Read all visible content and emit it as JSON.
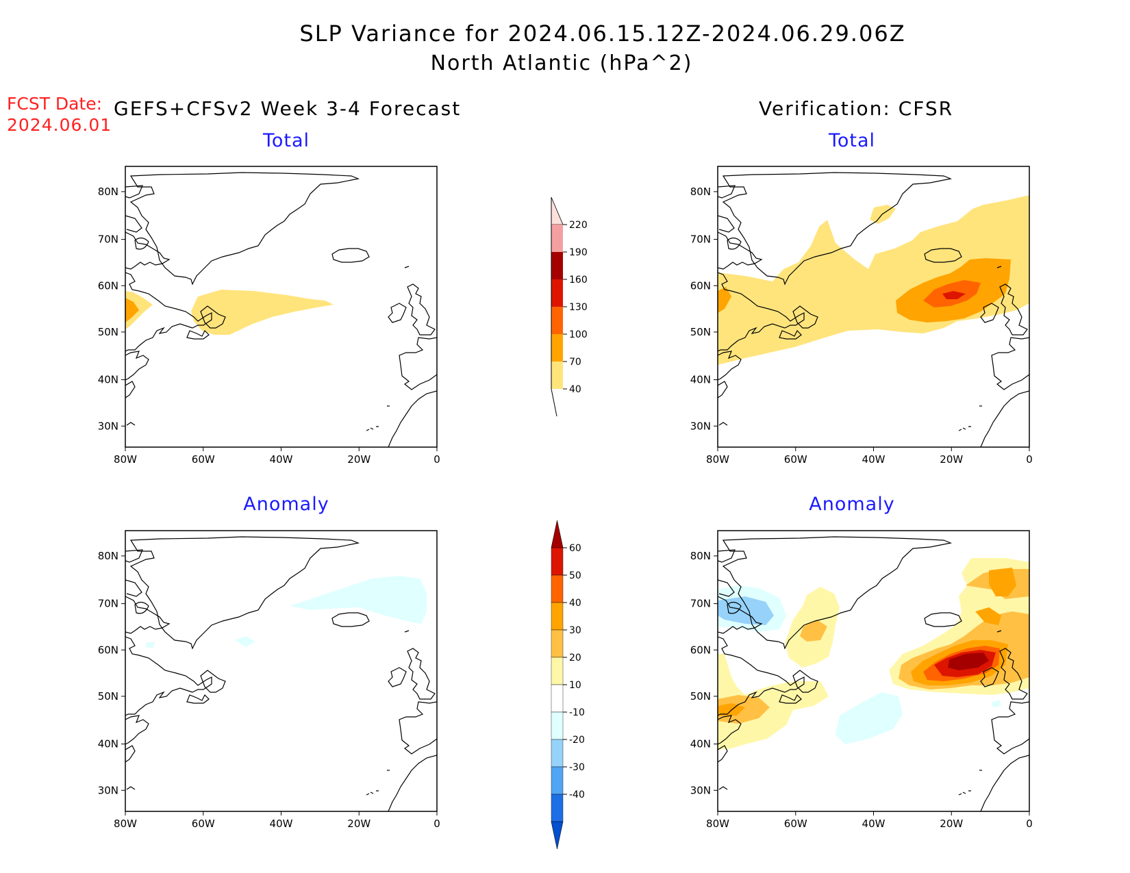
{
  "title": {
    "line1": "SLP Variance for 2024.06.15.12Z-2024.06.29.06Z",
    "line2": "North Atlantic (hPa^2)"
  },
  "forecast": {
    "date_label": "FCST Date:",
    "date_value": "2024.06.01",
    "title": "GEFS+CFSv2 Week 3-4 Forecast"
  },
  "verification": {
    "title": "Verification: CFSR"
  },
  "subtitles": {
    "total": "Total",
    "anomaly": "Anomaly"
  },
  "axes": {
    "lat_labels": [
      "80N",
      "70N",
      "60N",
      "50N",
      "40N",
      "30N"
    ],
    "lon_labels": [
      "80W",
      "60W",
      "40W",
      "20W",
      "0"
    ]
  },
  "colorbar_total": {
    "labels": [
      "220",
      "190",
      "160",
      "130",
      "100",
      "70",
      "40"
    ],
    "colors": [
      "#fde0dc",
      "#f4a0a0",
      "#a50000",
      "#dd1500",
      "#ff6400",
      "#ffa400",
      "#ffe47c"
    ]
  },
  "colorbar_anomaly": {
    "labels": [
      "60",
      "50",
      "40",
      "30",
      "20",
      "10",
      "-10",
      "-20",
      "-30",
      "-40"
    ],
    "colors": [
      "#a50000",
      "#dd1500",
      "#ff6400",
      "#ffa400",
      "#ffc044",
      "#fff7a8",
      "#ffffff",
      "#e0ffff",
      "#96d2fa",
      "#50a5f5",
      "#1e6ee6",
      "#0050d0"
    ]
  },
  "colors": {
    "coast": "#000000",
    "yellow": "#ffe47c",
    "orange": "#ffa400",
    "red": "#ff6400",
    "darkred": "#dd1500",
    "maroon": "#a50000",
    "pale_yellow": "#fff7a8",
    "light_orange": "#ffc044",
    "pale_cyan": "#e0ffff",
    "light_blue": "#96d2fa"
  }
}
